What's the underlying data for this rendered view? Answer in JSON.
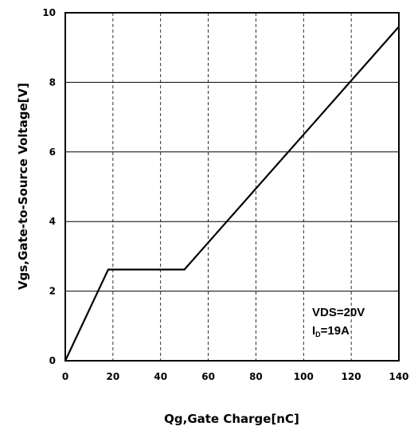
{
  "chart_data": {
    "type": "line",
    "xlabel": "Qg,Gate Charge[nC]",
    "ylabel": "Vgs,Gate-to-Source Voltage[V]",
    "xlim": [
      0,
      140
    ],
    "ylim": [
      0,
      10
    ],
    "xticks": [
      "0",
      "20",
      "40",
      "60",
      "80",
      "100",
      "120",
      "140"
    ],
    "yticks": [
      "0",
      "2",
      "4",
      "6",
      "8",
      "10"
    ],
    "grid": {
      "vertical": "dashed",
      "horizontal": "solid"
    },
    "series": [
      {
        "x": [
          0,
          18,
          50,
          140
        ],
        "y": [
          0,
          2.62,
          2.62,
          9.6
        ]
      }
    ],
    "annotation": {
      "line1": "VDS=20V",
      "line2_prefix": "I",
      "line2_sub": "D",
      "line2_suffix": "=19A"
    },
    "line_color": "#000000"
  }
}
